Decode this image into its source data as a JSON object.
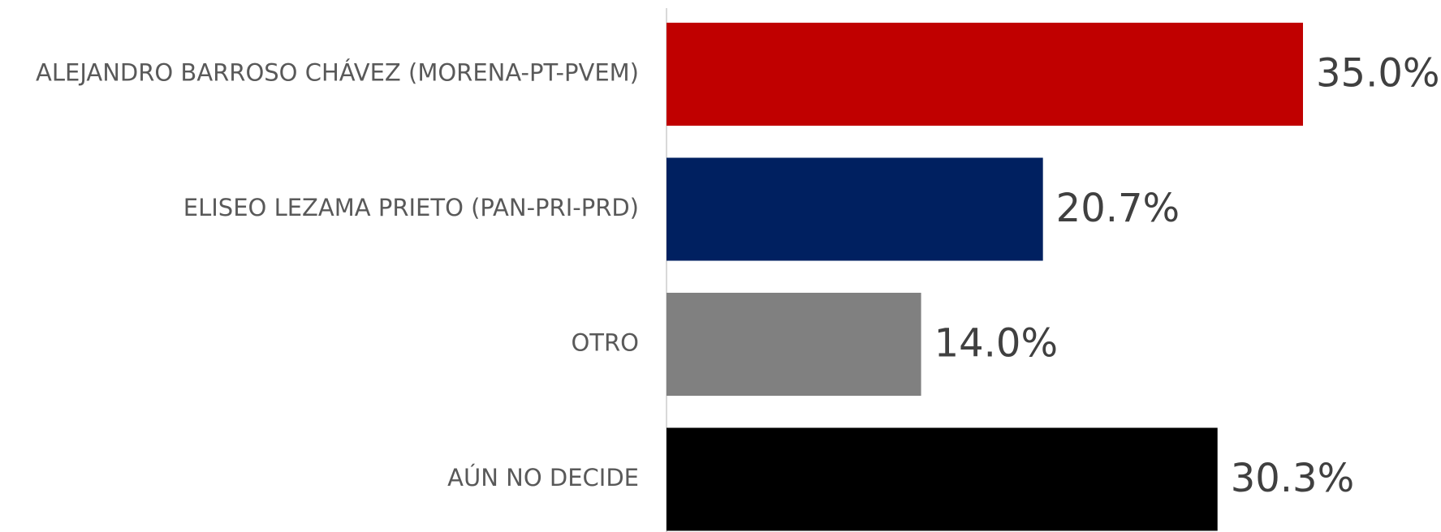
{
  "chart_data": {
    "type": "bar",
    "orientation": "horizontal",
    "categories": [
      "ALEJANDRO BARROSO CHÁVEZ (MORENA-PT-PVEM)",
      "ELISEO LEZAMA PRIETO (PAN-PRI-PRD)",
      "OTRO",
      "AÚN NO DECIDE"
    ],
    "values": [
      35.0,
      20.7,
      14.0,
      30.3
    ],
    "value_labels": [
      "35.0%",
      "20.7%",
      "14.0%",
      "30.3%"
    ],
    "colors": [
      "#c00000",
      "#002060",
      "#808080",
      "#000000"
    ]
  }
}
